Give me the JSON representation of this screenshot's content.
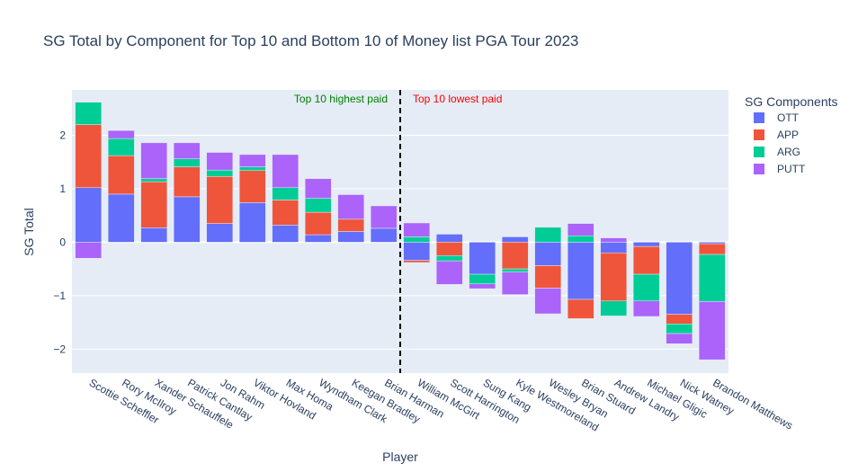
{
  "chart_data": {
    "type": "bar",
    "barmode": "relative",
    "title": "SG Total by Component for Top 10 and Bottom 10 of Money list PGA Tour 2023",
    "xlabel": "Player",
    "ylabel": "SG Total",
    "ylim": [
      -2.45,
      2.85
    ],
    "yticks": [
      -2,
      -1,
      0,
      1,
      2
    ],
    "ytick_labels": [
      "−2",
      "−1",
      "0",
      "1",
      "2"
    ],
    "grid": true,
    "legend_title": "SG Components",
    "legend_position": "right",
    "categories": [
      "Scottie Scheffler",
      "Rory McIlroy",
      "Xander Schauffele",
      "Patrick Cantlay",
      "Jon Rahm",
      "Viktor Hovland",
      "Max Homa",
      "Wyndham Clark",
      "Keegan Bradley",
      "Brian Harman",
      "William McGirt",
      "Scott Harrington",
      "Sung Kang",
      "Kyle Westmoreland",
      "Wesley Bryan",
      "Brian Stuard",
      "Andrew Landry",
      "Michael Gligic",
      "Nick Watney",
      "Brandon Matthews"
    ],
    "series": [
      {
        "name": "OTT",
        "color": "#636efa",
        "values": [
          1.02,
          0.9,
          0.27,
          0.85,
          0.35,
          0.74,
          0.32,
          0.14,
          0.2,
          0.26,
          -0.34,
          0.15,
          -0.6,
          0.1,
          -0.44,
          -1.07,
          -0.2,
          -0.08,
          -1.35,
          -0.03
        ]
      },
      {
        "name": "APP",
        "color": "#ef553b",
        "values": [
          1.18,
          0.72,
          0.86,
          0.56,
          0.88,
          0.6,
          0.47,
          0.42,
          0.23,
          0,
          -0.04,
          -0.25,
          0,
          -0.5,
          -0.42,
          -0.36,
          -0.9,
          -0.52,
          -0.18,
          -0.2
        ]
      },
      {
        "name": "ARG",
        "color": "#00cc96",
        "values": [
          0.42,
          0.32,
          0.06,
          0.15,
          0.12,
          0.07,
          0.23,
          0.26,
          0,
          0,
          0.1,
          -0.1,
          -0.18,
          -0.06,
          0.28,
          0.12,
          -0.28,
          -0.5,
          -0.18,
          -0.88
        ]
      },
      {
        "name": "PUTT",
        "color": "#ab63fa",
        "values": [
          -0.3,
          0.15,
          0.67,
          0.3,
          0.33,
          0.23,
          0.62,
          0.37,
          0.46,
          0.42,
          0.26,
          -0.44,
          -0.09,
          -0.42,
          -0.48,
          0.23,
          0.08,
          -0.29,
          -0.19,
          -1.09
        ]
      }
    ],
    "annotations": [
      {
        "text": "Top 10 highest paid",
        "color": "#008000"
      },
      {
        "text": "Top 10 lowest paid",
        "color": "#ff0000"
      }
    ],
    "divider": {
      "between": [
        "Brian Harman",
        "William McGirt"
      ],
      "style": "dashed",
      "color": "#000000"
    }
  }
}
